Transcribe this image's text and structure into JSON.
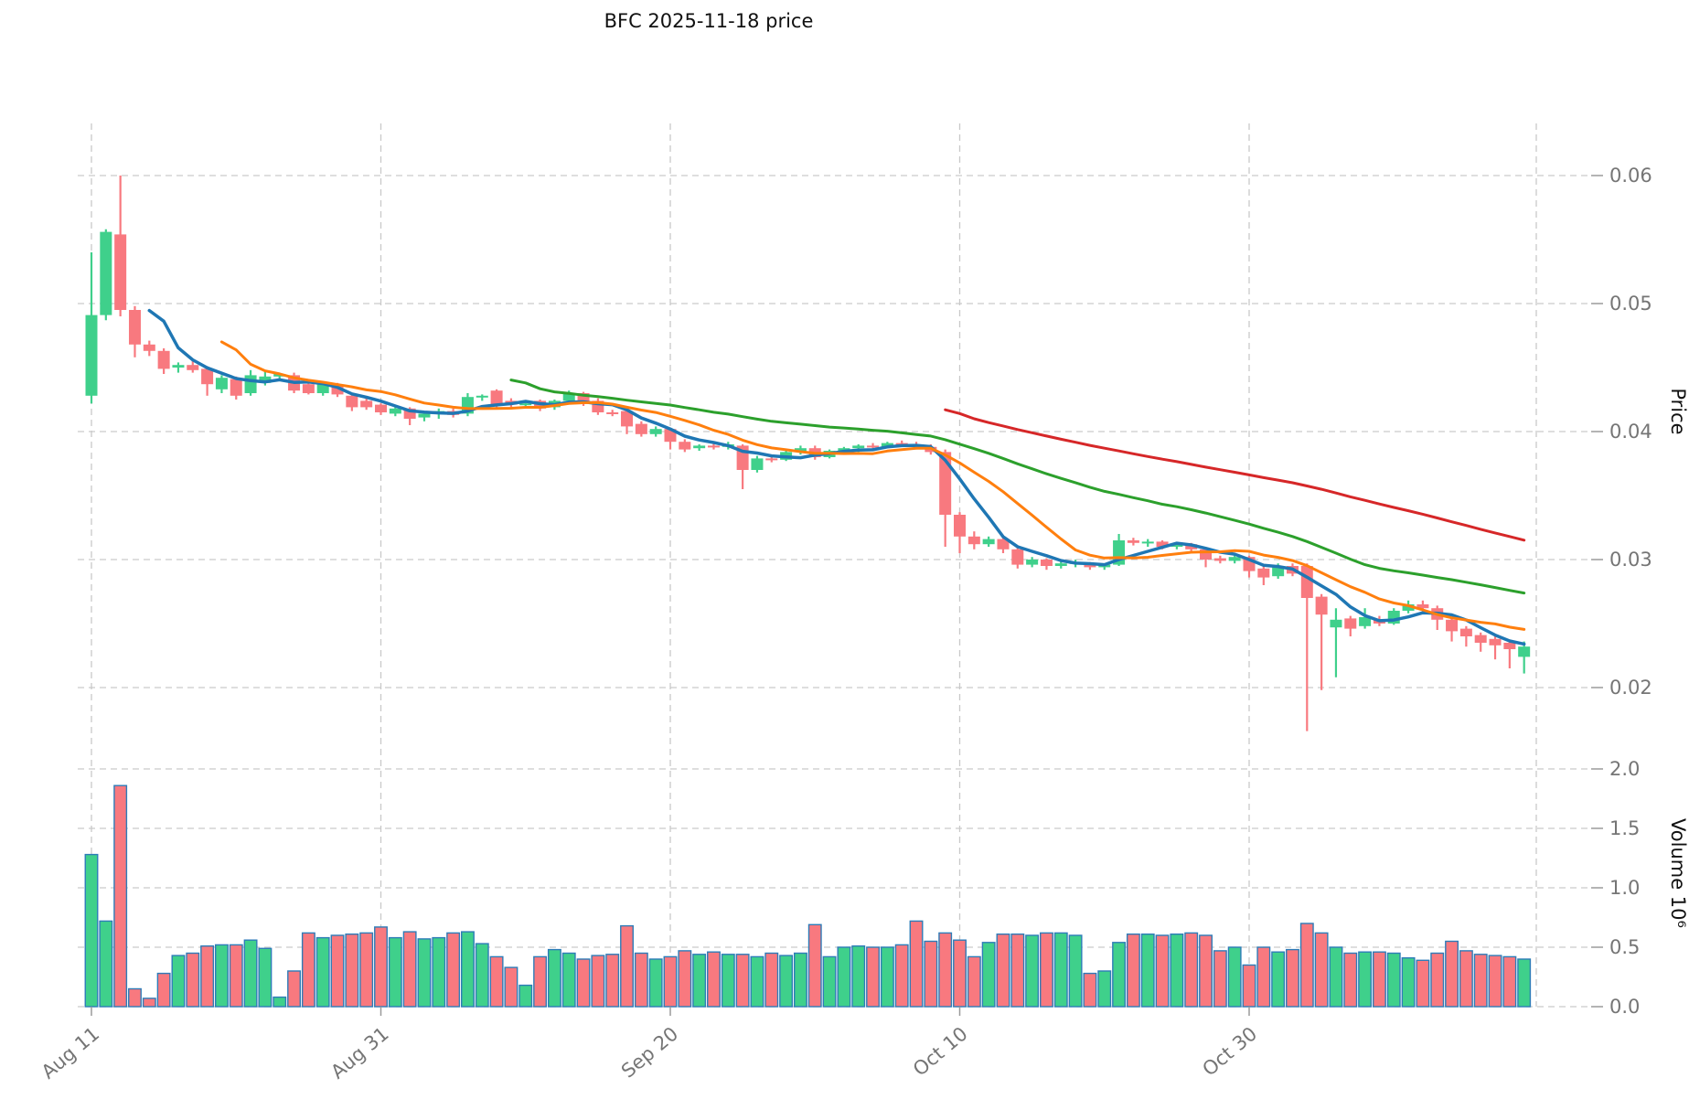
{
  "title": "BFC  2025-11-18  price",
  "axes": {
    "price_label": "Price",
    "volume_label": "Volume  10⁶",
    "price_ticks": [
      "0.06",
      "0.05",
      "0.04",
      "0.03",
      "0.02"
    ],
    "price_tick_values": [
      0.06,
      0.05,
      0.04,
      0.03,
      0.02
    ],
    "volume_ticks": [
      "2.0",
      "1.5",
      "1.0",
      "0.5",
      "0.0"
    ],
    "volume_tick_values": [
      2.0,
      1.5,
      1.0,
      0.5,
      0.0
    ],
    "x_ticks": [
      {
        "label": "Aug 11",
        "day": 0
      },
      {
        "label": "Aug 31",
        "day": 20
      },
      {
        "label": "Sep 20",
        "day": 40
      },
      {
        "label": "Oct 10",
        "day": 60
      },
      {
        "label": "Oct 30",
        "day": 80
      }
    ]
  },
  "colors": {
    "up": "#3fd08b",
    "down": "#f8797f",
    "volume_edge": "#2e7cb8",
    "grid": "#c9c9c9",
    "tick_text": "#757575",
    "ma_lines": [
      "#1f77b4",
      "#ff7f0e",
      "#2ca02c",
      "#d62728"
    ]
  },
  "chart_data": {
    "type": "candlestick+volume",
    "symbol": "BFC",
    "as_of_date": "2025-11-18",
    "start_date": "2025-08-11",
    "end_date": "2025-11-18",
    "days": 100,
    "grid": true,
    "price_axis_side": "right",
    "price_ylim": [
      0.0155,
      0.0645
    ],
    "volume_ylim": [
      0.0,
      2.2
    ],
    "volume_unit": 1000000,
    "ma_windows": [
      5,
      10,
      30,
      60
    ],
    "ohlcv_columns": [
      "open",
      "high",
      "low",
      "close",
      "volume_millions"
    ],
    "ohlcv": [
      [
        0.0428,
        0.054,
        0.0422,
        0.0491,
        1.28
      ],
      [
        0.0491,
        0.0558,
        0.0487,
        0.0556,
        0.72
      ],
      [
        0.0554,
        0.06,
        0.049,
        0.0495,
        1.86
      ],
      [
        0.0495,
        0.0498,
        0.0458,
        0.0468,
        0.15
      ],
      [
        0.0468,
        0.0471,
        0.0459,
        0.0463,
        0.07
      ],
      [
        0.0463,
        0.0465,
        0.0445,
        0.0449,
        0.28
      ],
      [
        0.045,
        0.0454,
        0.0446,
        0.0452,
        0.43
      ],
      [
        0.0452,
        0.0455,
        0.0446,
        0.0448,
        0.45
      ],
      [
        0.0449,
        0.0451,
        0.0428,
        0.0437,
        0.51
      ],
      [
        0.0433,
        0.0444,
        0.043,
        0.0442,
        0.52
      ],
      [
        0.0441,
        0.0443,
        0.0425,
        0.0428,
        0.52
      ],
      [
        0.043,
        0.0448,
        0.0428,
        0.0444,
        0.56
      ],
      [
        0.0438,
        0.0447,
        0.0436,
        0.0443,
        0.49
      ],
      [
        0.0443,
        0.0446,
        0.0441,
        0.0445,
        0.08
      ],
      [
        0.0444,
        0.0446,
        0.043,
        0.0432,
        0.3
      ],
      [
        0.0437,
        0.0439,
        0.0429,
        0.043,
        0.62
      ],
      [
        0.043,
        0.0438,
        0.0428,
        0.0437,
        0.58
      ],
      [
        0.0436,
        0.0438,
        0.0427,
        0.0429,
        0.6
      ],
      [
        0.0428,
        0.043,
        0.0416,
        0.0419,
        0.61
      ],
      [
        0.0424,
        0.0426,
        0.0417,
        0.0419,
        0.62
      ],
      [
        0.0421,
        0.0422,
        0.0413,
        0.0415,
        0.67
      ],
      [
        0.0414,
        0.0419,
        0.0412,
        0.0418,
        0.58
      ],
      [
        0.0418,
        0.0419,
        0.0405,
        0.041,
        0.63
      ],
      [
        0.0411,
        0.0415,
        0.0408,
        0.0414,
        0.57
      ],
      [
        0.0414,
        0.0418,
        0.041,
        0.0416,
        0.58
      ],
      [
        0.0416,
        0.0418,
        0.0411,
        0.0413,
        0.62
      ],
      [
        0.0414,
        0.043,
        0.0412,
        0.0427,
        0.63
      ],
      [
        0.0427,
        0.0429,
        0.0424,
        0.0428,
        0.53
      ],
      [
        0.0432,
        0.0433,
        0.0418,
        0.042,
        0.42
      ],
      [
        0.0424,
        0.0426,
        0.0419,
        0.0421,
        0.33
      ],
      [
        0.0421,
        0.0424,
        0.0419,
        0.0422,
        0.18
      ],
      [
        0.0424,
        0.0425,
        0.0416,
        0.0418,
        0.42
      ],
      [
        0.0419,
        0.0425,
        0.0417,
        0.0424,
        0.48
      ],
      [
        0.0424,
        0.0432,
        0.0422,
        0.043,
        0.45
      ],
      [
        0.043,
        0.0431,
        0.042,
        0.0422,
        0.4
      ],
      [
        0.0424,
        0.0426,
        0.0413,
        0.0415,
        0.43
      ],
      [
        0.0415,
        0.0417,
        0.0412,
        0.0414,
        0.44
      ],
      [
        0.0416,
        0.0417,
        0.0398,
        0.0404,
        0.68
      ],
      [
        0.0406,
        0.0408,
        0.0396,
        0.0398,
        0.45
      ],
      [
        0.0398,
        0.0404,
        0.0396,
        0.0402,
        0.4
      ],
      [
        0.0402,
        0.0403,
        0.0386,
        0.0392,
        0.42
      ],
      [
        0.0392,
        0.0394,
        0.0384,
        0.0386,
        0.47
      ],
      [
        0.0387,
        0.039,
        0.0385,
        0.0389,
        0.44
      ],
      [
        0.0389,
        0.0391,
        0.0386,
        0.0388,
        0.46
      ],
      [
        0.0388,
        0.0392,
        0.0386,
        0.039,
        0.44
      ],
      [
        0.0389,
        0.039,
        0.0355,
        0.037,
        0.44
      ],
      [
        0.037,
        0.0381,
        0.0368,
        0.0379,
        0.42
      ],
      [
        0.0379,
        0.0381,
        0.0376,
        0.0378,
        0.45
      ],
      [
        0.0378,
        0.0386,
        0.0377,
        0.0384,
        0.43
      ],
      [
        0.0384,
        0.0389,
        0.0382,
        0.0387,
        0.45
      ],
      [
        0.0387,
        0.0389,
        0.0378,
        0.038,
        0.69
      ],
      [
        0.038,
        0.0386,
        0.0379,
        0.0385,
        0.42
      ],
      [
        0.0385,
        0.0388,
        0.0383,
        0.0387,
        0.5
      ],
      [
        0.0387,
        0.039,
        0.0384,
        0.0389,
        0.51
      ],
      [
        0.0389,
        0.0391,
        0.0386,
        0.0388,
        0.5
      ],
      [
        0.0388,
        0.0392,
        0.0387,
        0.0391,
        0.5
      ],
      [
        0.0391,
        0.0393,
        0.0388,
        0.039,
        0.52
      ],
      [
        0.039,
        0.0392,
        0.0386,
        0.0388,
        0.72
      ],
      [
        0.0388,
        0.039,
        0.0382,
        0.0384,
        0.55
      ],
      [
        0.0384,
        0.0386,
        0.031,
        0.0335,
        0.62
      ],
      [
        0.0335,
        0.0337,
        0.0305,
        0.0318,
        0.56
      ],
      [
        0.0318,
        0.0322,
        0.0308,
        0.0312,
        0.42
      ],
      [
        0.0312,
        0.0318,
        0.031,
        0.0316,
        0.54
      ],
      [
        0.0316,
        0.0317,
        0.0305,
        0.0308,
        0.61
      ],
      [
        0.0308,
        0.0311,
        0.0293,
        0.0296,
        0.61
      ],
      [
        0.0296,
        0.0302,
        0.0294,
        0.03,
        0.6
      ],
      [
        0.03,
        0.0301,
        0.0292,
        0.0295,
        0.62
      ],
      [
        0.0295,
        0.0299,
        0.0293,
        0.0297,
        0.62
      ],
      [
        0.0297,
        0.03,
        0.0294,
        0.0298,
        0.6
      ],
      [
        0.0296,
        0.0298,
        0.0292,
        0.0294,
        0.28
      ],
      [
        0.0294,
        0.0297,
        0.0292,
        0.0296,
        0.3
      ],
      [
        0.0296,
        0.032,
        0.0295,
        0.0315,
        0.54
      ],
      [
        0.0315,
        0.0317,
        0.0311,
        0.0313,
        0.61
      ],
      [
        0.0313,
        0.0316,
        0.031,
        0.0314,
        0.61
      ],
      [
        0.0314,
        0.0315,
        0.0308,
        0.031,
        0.6
      ],
      [
        0.031,
        0.0313,
        0.0308,
        0.0312,
        0.61
      ],
      [
        0.0312,
        0.0313,
        0.0306,
        0.0308,
        0.62
      ],
      [
        0.0308,
        0.0309,
        0.0294,
        0.03,
        0.6
      ],
      [
        0.0301,
        0.0303,
        0.0297,
        0.0299,
        0.47
      ],
      [
        0.0299,
        0.0304,
        0.0297,
        0.0302,
        0.5
      ],
      [
        0.0302,
        0.0303,
        0.0286,
        0.0291,
        0.35
      ],
      [
        0.0293,
        0.0295,
        0.028,
        0.0286,
        0.5
      ],
      [
        0.0287,
        0.0297,
        0.0285,
        0.0295,
        0.46
      ],
      [
        0.0295,
        0.0297,
        0.0287,
        0.0289,
        0.48
      ],
      [
        0.0295,
        0.0297,
        0.0166,
        0.027,
        0.7
      ],
      [
        0.0271,
        0.0273,
        0.0198,
        0.0257,
        0.62
      ],
      [
        0.0247,
        0.0262,
        0.0208,
        0.0253,
        0.5
      ],
      [
        0.0254,
        0.0256,
        0.024,
        0.0246,
        0.45
      ],
      [
        0.0248,
        0.0262,
        0.0246,
        0.0255,
        0.46
      ],
      [
        0.0253,
        0.0256,
        0.0248,
        0.025,
        0.46
      ],
      [
        0.025,
        0.0262,
        0.0249,
        0.026,
        0.45
      ],
      [
        0.026,
        0.0268,
        0.0258,
        0.0265,
        0.41
      ],
      [
        0.0265,
        0.0268,
        0.026,
        0.0262,
        0.39
      ],
      [
        0.0262,
        0.0264,
        0.0245,
        0.0253,
        0.45
      ],
      [
        0.0253,
        0.0255,
        0.0236,
        0.0244,
        0.55
      ],
      [
        0.0246,
        0.0248,
        0.0232,
        0.024,
        0.47
      ],
      [
        0.0241,
        0.0243,
        0.0228,
        0.0235,
        0.44
      ],
      [
        0.0238,
        0.024,
        0.0222,
        0.0233,
        0.43
      ],
      [
        0.0235,
        0.0237,
        0.0215,
        0.023,
        0.42
      ],
      [
        0.0224,
        0.0236,
        0.0211,
        0.0232,
        0.4
      ]
    ]
  }
}
